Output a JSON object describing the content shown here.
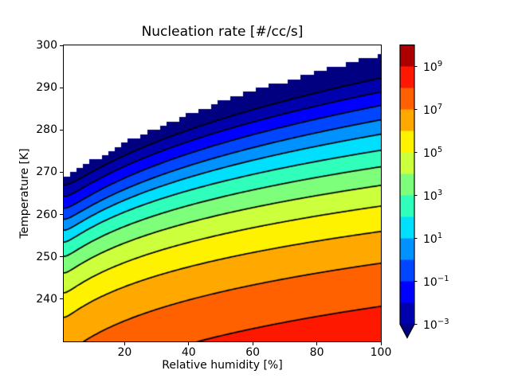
{
  "figure": {
    "background": "#ffffff"
  },
  "chart_data": {
    "type": "filled_contour",
    "title": "Nucleation rate [#/cc/s]",
    "xlabel": "Relative humidity [%]",
    "ylabel": "Temperature [K]",
    "xlim": [
      1,
      100
    ],
    "ylim": [
      230,
      300
    ],
    "grid": false,
    "colormap": "jet",
    "xticks": [
      {
        "value": 20,
        "label": "20"
      },
      {
        "value": 40,
        "label": "40"
      },
      {
        "value": 60,
        "label": "60"
      },
      {
        "value": 80,
        "label": "80"
      },
      {
        "value": 100,
        "label": "100"
      }
    ],
    "yticks": [
      {
        "value": 300,
        "label": "300"
      },
      {
        "value": 290,
        "label": "290"
      },
      {
        "value": 280,
        "label": "280"
      },
      {
        "value": 270,
        "label": "270"
      },
      {
        "value": 260,
        "label": "260"
      },
      {
        "value": 250,
        "label": "250"
      },
      {
        "value": 240,
        "label": "240"
      }
    ],
    "background_above_data": "#ffffff",
    "under_color": "#000080",
    "band_colors_low_to_high": [
      "#0000ad",
      "#0000ff",
      "#0045ff",
      "#0093ff",
      "#00e0fe",
      "#30ffbb",
      "#7eff7b",
      "#ccff3c",
      "#fff200",
      "#ffa900",
      "#ff6100",
      "#ff1800",
      "#ac0000"
    ],
    "line_color": "#000000",
    "line_width": 1.7,
    "levels_log10_lines": [
      -3,
      -2,
      -1,
      0,
      1,
      2,
      3,
      4,
      5,
      6,
      7,
      8
    ],
    "data_boundary": {
      "T_at_rh1": 268.9,
      "T_at_rh100": 298.0,
      "shape_exponent": 3.0,
      "rh_quantize": 2,
      "T_quantize": 1
    },
    "contour_lines": [
      {
        "level_log10": -3,
        "T_at_rh1": 267.0,
        "T_at_rh100": 292.3,
        "shape_exponent": 3.0
      },
      {
        "level_log10": -2,
        "T_at_rh1": 264.3,
        "T_at_rh100": 289.0,
        "shape_exponent": 2.9
      },
      {
        "level_log10": -1,
        "T_at_rh1": 261.5,
        "T_at_rh100": 285.8,
        "shape_exponent": 2.85
      },
      {
        "level_log10": 0,
        "T_at_rh1": 258.9,
        "T_at_rh100": 282.4,
        "shape_exponent": 2.8
      },
      {
        "level_log10": 1,
        "T_at_rh1": 256.3,
        "T_at_rh100": 279.0,
        "shape_exponent": 2.7
      },
      {
        "level_log10": 2,
        "T_at_rh1": 253.5,
        "T_at_rh100": 275.2,
        "shape_exponent": 2.6
      },
      {
        "level_log10": 3,
        "T_at_rh1": 250.1,
        "T_at_rh100": 271.3,
        "shape_exponent": 2.55
      },
      {
        "level_log10": 4,
        "T_at_rh1": 246.2,
        "T_at_rh100": 266.9,
        "shape_exponent": 2.5
      },
      {
        "level_log10": 5,
        "T_at_rh1": 241.5,
        "T_at_rh100": 262.0,
        "shape_exponent": 2.45
      },
      {
        "level_log10": 6,
        "T_at_rh1": 235.7,
        "T_at_rh100": 256.0,
        "shape_exponent": 2.4
      },
      {
        "level_log10": 7,
        "T_at_rh1": 227.0,
        "T_at_rh100": 248.5,
        "shape_exponent": 2.34
      },
      {
        "level_log10": 8,
        "T_at_rh1": 216.0,
        "T_at_rh100": 238.3,
        "shape_exponent": 2.3
      }
    ],
    "colorbar": {
      "extend": "min",
      "tick_base": "10",
      "tick_exponents_top_to_bottom": [
        "9",
        "7",
        "5",
        "3",
        "1",
        "−1",
        "−3"
      ]
    }
  }
}
